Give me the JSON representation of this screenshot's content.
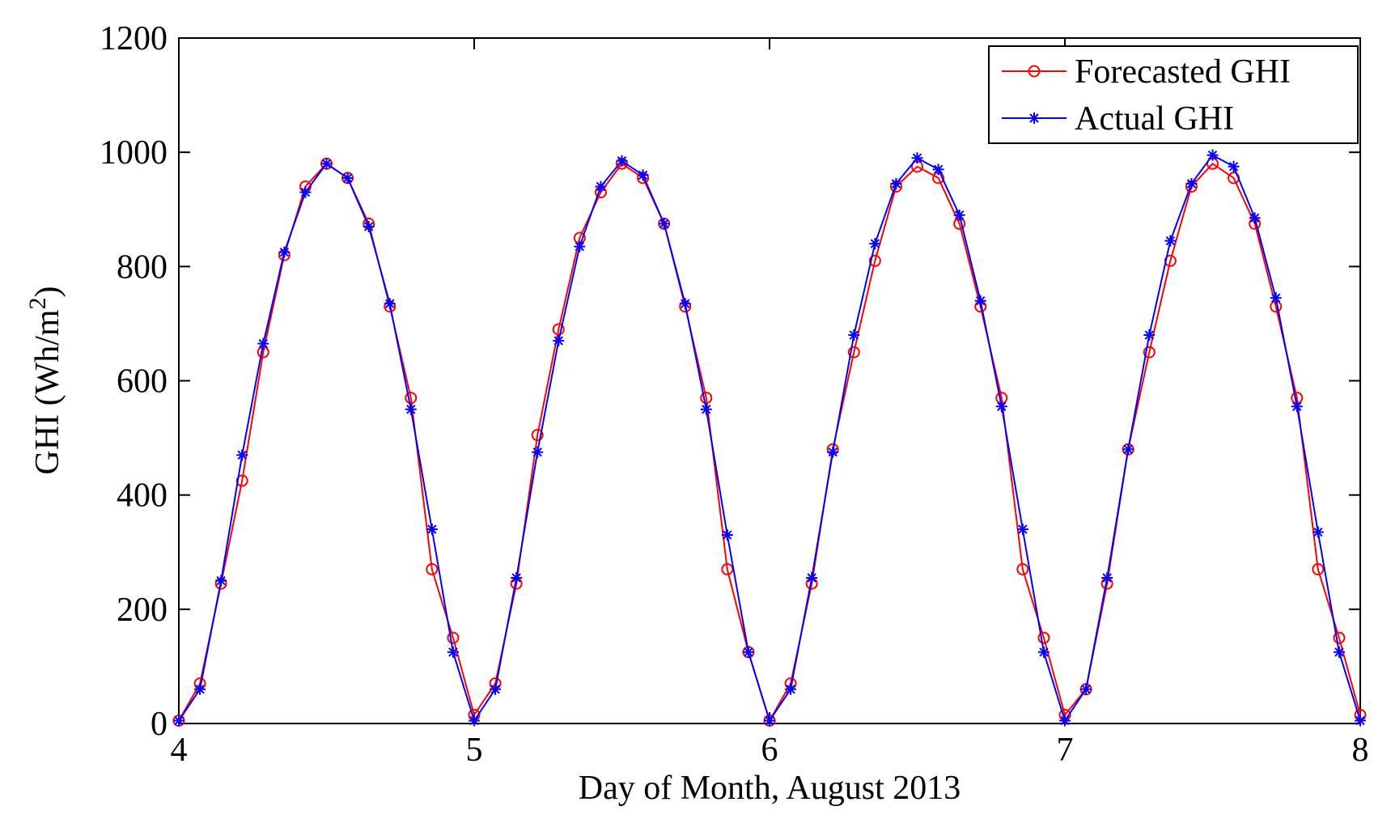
{
  "chart_data": {
    "type": "line",
    "title": "",
    "xlabel": "Day of Month, August 2013",
    "ylabel_main": "GHI (Wh/m",
    "ylabel_sup": "2",
    "ylabel_close": ")",
    "xlim": [
      4,
      8
    ],
    "ylim": [
      0,
      1200
    ],
    "xticks": [
      4,
      5,
      6,
      7,
      8
    ],
    "yticks": [
      0,
      200,
      400,
      600,
      800,
      1000,
      1200
    ],
    "grid": false,
    "legend_position": "top-right",
    "series": [
      {
        "name": "Forecasted GHI",
        "color": "#ff0000",
        "marker": "circle",
        "x": [
          4.0,
          4.0714,
          4.1429,
          4.2143,
          4.2857,
          4.3571,
          4.4286,
          4.5,
          4.5714,
          4.6429,
          4.7143,
          4.7857,
          4.8571,
          4.9286,
          5.0,
          5.0714,
          5.1429,
          5.2143,
          5.2857,
          5.3571,
          5.4286,
          5.5,
          5.5714,
          5.6429,
          5.7143,
          5.7857,
          5.8571,
          5.9286,
          6.0,
          6.0714,
          6.1429,
          6.2143,
          6.2857,
          6.3571,
          6.4286,
          6.5,
          6.5714,
          6.6429,
          6.7143,
          6.7857,
          6.8571,
          6.9286,
          7.0,
          7.0714,
          7.1429,
          7.2143,
          7.2857,
          7.3571,
          7.4286,
          7.5,
          7.5714,
          7.6429,
          7.7143,
          7.7857,
          7.8571,
          7.9286,
          8.0
        ],
        "y": [
          5,
          70,
          245,
          425,
          650,
          820,
          940,
          980,
          955,
          875,
          730,
          570,
          270,
          150,
          15,
          70,
          245,
          505,
          690,
          850,
          930,
          980,
          955,
          875,
          730,
          570,
          270,
          125,
          5,
          70,
          245,
          480,
          650,
          810,
          940,
          975,
          955,
          875,
          730,
          570,
          270,
          150,
          15,
          60,
          245,
          480,
          650,
          810,
          940,
          980,
          955,
          875,
          730,
          570,
          270,
          150,
          15
        ]
      },
      {
        "name": "Actual GHI",
        "color": "#0000ff",
        "marker": "star",
        "x": [
          4.0,
          4.0714,
          4.1429,
          4.2143,
          4.2857,
          4.3571,
          4.4286,
          4.5,
          4.5714,
          4.6429,
          4.7143,
          4.7857,
          4.8571,
          4.9286,
          5.0,
          5.0714,
          5.1429,
          5.2143,
          5.2857,
          5.3571,
          5.4286,
          5.5,
          5.5714,
          5.6429,
          5.7143,
          5.7857,
          5.8571,
          5.9286,
          6.0,
          6.0714,
          6.1429,
          6.2143,
          6.2857,
          6.3571,
          6.4286,
          6.5,
          6.5714,
          6.6429,
          6.7143,
          6.7857,
          6.8571,
          6.9286,
          7.0,
          7.0714,
          7.1429,
          7.2143,
          7.2857,
          7.3571,
          7.4286,
          7.5,
          7.5714,
          7.6429,
          7.7143,
          7.7857,
          7.8571,
          7.9286,
          8.0
        ],
        "y": [
          5,
          60,
          250,
          470,
          665,
          825,
          930,
          980,
          955,
          870,
          735,
          550,
          340,
          125,
          5,
          60,
          255,
          475,
          670,
          835,
          940,
          985,
          960,
          875,
          735,
          550,
          330,
          125,
          5,
          60,
          255,
          475,
          680,
          840,
          945,
          990,
          970,
          890,
          740,
          555,
          340,
          125,
          5,
          60,
          255,
          480,
          680,
          845,
          945,
          995,
          975,
          885,
          745,
          555,
          335,
          125,
          5
        ]
      }
    ]
  }
}
